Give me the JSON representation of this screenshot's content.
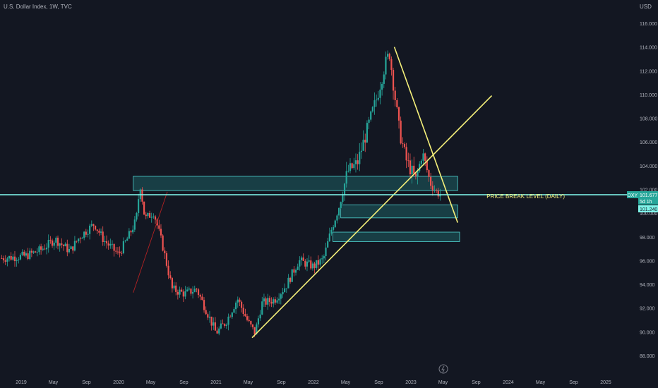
{
  "header": {
    "symbol_title": "U.S. Dollar Index, 1W, TVC",
    "currency": "USD"
  },
  "colors": {
    "background": "#131722",
    "up": "#26a69a",
    "down": "#ef5350",
    "trend": "#f5f07a",
    "zone_fill": "#1f6f72",
    "zone_stroke": "#4fd3d0",
    "price_line": "#7ff5ea",
    "axis_text": "#b2b5be"
  },
  "chart_data": {
    "type": "candlestick",
    "ylim": [
      87.7,
      117.6
    ],
    "y_ticks": [
      88,
      90,
      92,
      94,
      96,
      98,
      100,
      102,
      104,
      106,
      108,
      110,
      112,
      114,
      116
    ],
    "x_ticks": [
      {
        "label": "2019",
        "t": 2019.0
      },
      {
        "label": "May",
        "t": 2019.33
      },
      {
        "label": "Sep",
        "t": 2019.67
      },
      {
        "label": "2020",
        "t": 2020.0
      },
      {
        "label": "May",
        "t": 2020.33
      },
      {
        "label": "Sep",
        "t": 2020.67
      },
      {
        "label": "2021",
        "t": 2021.0
      },
      {
        "label": "May",
        "t": 2021.33
      },
      {
        "label": "Sep",
        "t": 2021.67
      },
      {
        "label": "2022",
        "t": 2022.0
      },
      {
        "label": "May",
        "t": 2022.33
      },
      {
        "label": "Sep",
        "t": 2022.67
      },
      {
        "label": "2023",
        "t": 2023.0
      },
      {
        "label": "May",
        "t": 2023.33
      },
      {
        "label": "Sep",
        "t": 2023.67
      },
      {
        "label": "2024",
        "t": 2024.0
      },
      {
        "label": "May",
        "t": 2024.33
      },
      {
        "label": "Sep",
        "t": 2024.67
      },
      {
        "label": "2025",
        "t": 2025.0
      }
    ],
    "price_path": [
      [
        2018.8,
        96.2
      ],
      [
        2019.05,
        96.4
      ],
      [
        2019.2,
        96.9
      ],
      [
        2019.35,
        97.8
      ],
      [
        2019.5,
        96.8
      ],
      [
        2019.6,
        98.0
      ],
      [
        2019.75,
        99.1
      ],
      [
        2019.85,
        97.7
      ],
      [
        2020.0,
        96.5
      ],
      [
        2020.1,
        98.0
      ],
      [
        2020.18,
        99.4
      ],
      [
        2020.22,
        102.5
      ],
      [
        2020.27,
        99.5
      ],
      [
        2020.36,
        100.1
      ],
      [
        2020.45,
        97.3
      ],
      [
        2020.55,
        93.6
      ],
      [
        2020.68,
        93.2
      ],
      [
        2020.8,
        93.6
      ],
      [
        2020.9,
        91.8
      ],
      [
        2021.0,
        89.9
      ],
      [
        2021.1,
        90.8
      ],
      [
        2021.22,
        92.8
      ],
      [
        2021.33,
        90.8
      ],
      [
        2021.4,
        89.9
      ],
      [
        2021.47,
        92.4
      ],
      [
        2021.6,
        92.7
      ],
      [
        2021.72,
        93.9
      ],
      [
        2021.85,
        96.0
      ],
      [
        2022.0,
        95.5
      ],
      [
        2022.1,
        96.1
      ],
      [
        2022.18,
        98.5
      ],
      [
        2022.26,
        100.5
      ],
      [
        2022.35,
        103.5
      ],
      [
        2022.45,
        104.2
      ],
      [
        2022.55,
        107.0
      ],
      [
        2022.65,
        109.7
      ],
      [
        2022.73,
        112.4
      ],
      [
        2022.78,
        113.5
      ],
      [
        2022.82,
        110.9
      ],
      [
        2022.88,
        107.0
      ],
      [
        2022.95,
        104.5
      ],
      [
        2023.05,
        102.8
      ],
      [
        2023.12,
        105.1
      ],
      [
        2023.2,
        102.5
      ],
      [
        2023.27,
        101.7
      ],
      [
        2023.3,
        101.6
      ]
    ],
    "last_price": 101.677,
    "price_break_level": 101.55,
    "zones": [
      {
        "t1": 2020.15,
        "t2": 2023.48,
        "y1": 101.9,
        "y2": 103.1
      },
      {
        "t1": 2022.28,
        "t2": 2023.48,
        "y1": 99.6,
        "y2": 100.7
      },
      {
        "t1": 2022.2,
        "t2": 2023.5,
        "y1": 97.6,
        "y2": 98.4
      }
    ],
    "trendlines": [
      {
        "t1": 2021.37,
        "y1": 89.5,
        "t2": 2023.83,
        "y2": 109.9
      },
      {
        "t1": 2022.83,
        "y1": 114.0,
        "t2": 2023.48,
        "y2": 99.2
      }
    ],
    "red_line": {
      "t1": 2020.15,
      "y1": 93.3,
      "t2": 2020.5,
      "y2": 101.8
    },
    "annotations": {
      "price_break_label": "PRICE BREAK LEVEL (DAILY)",
      "symbol_tag": "DXY",
      "last_price_label": "101.677",
      "countdown_label": "5d 1h",
      "line_price_label": "101.240"
    }
  }
}
